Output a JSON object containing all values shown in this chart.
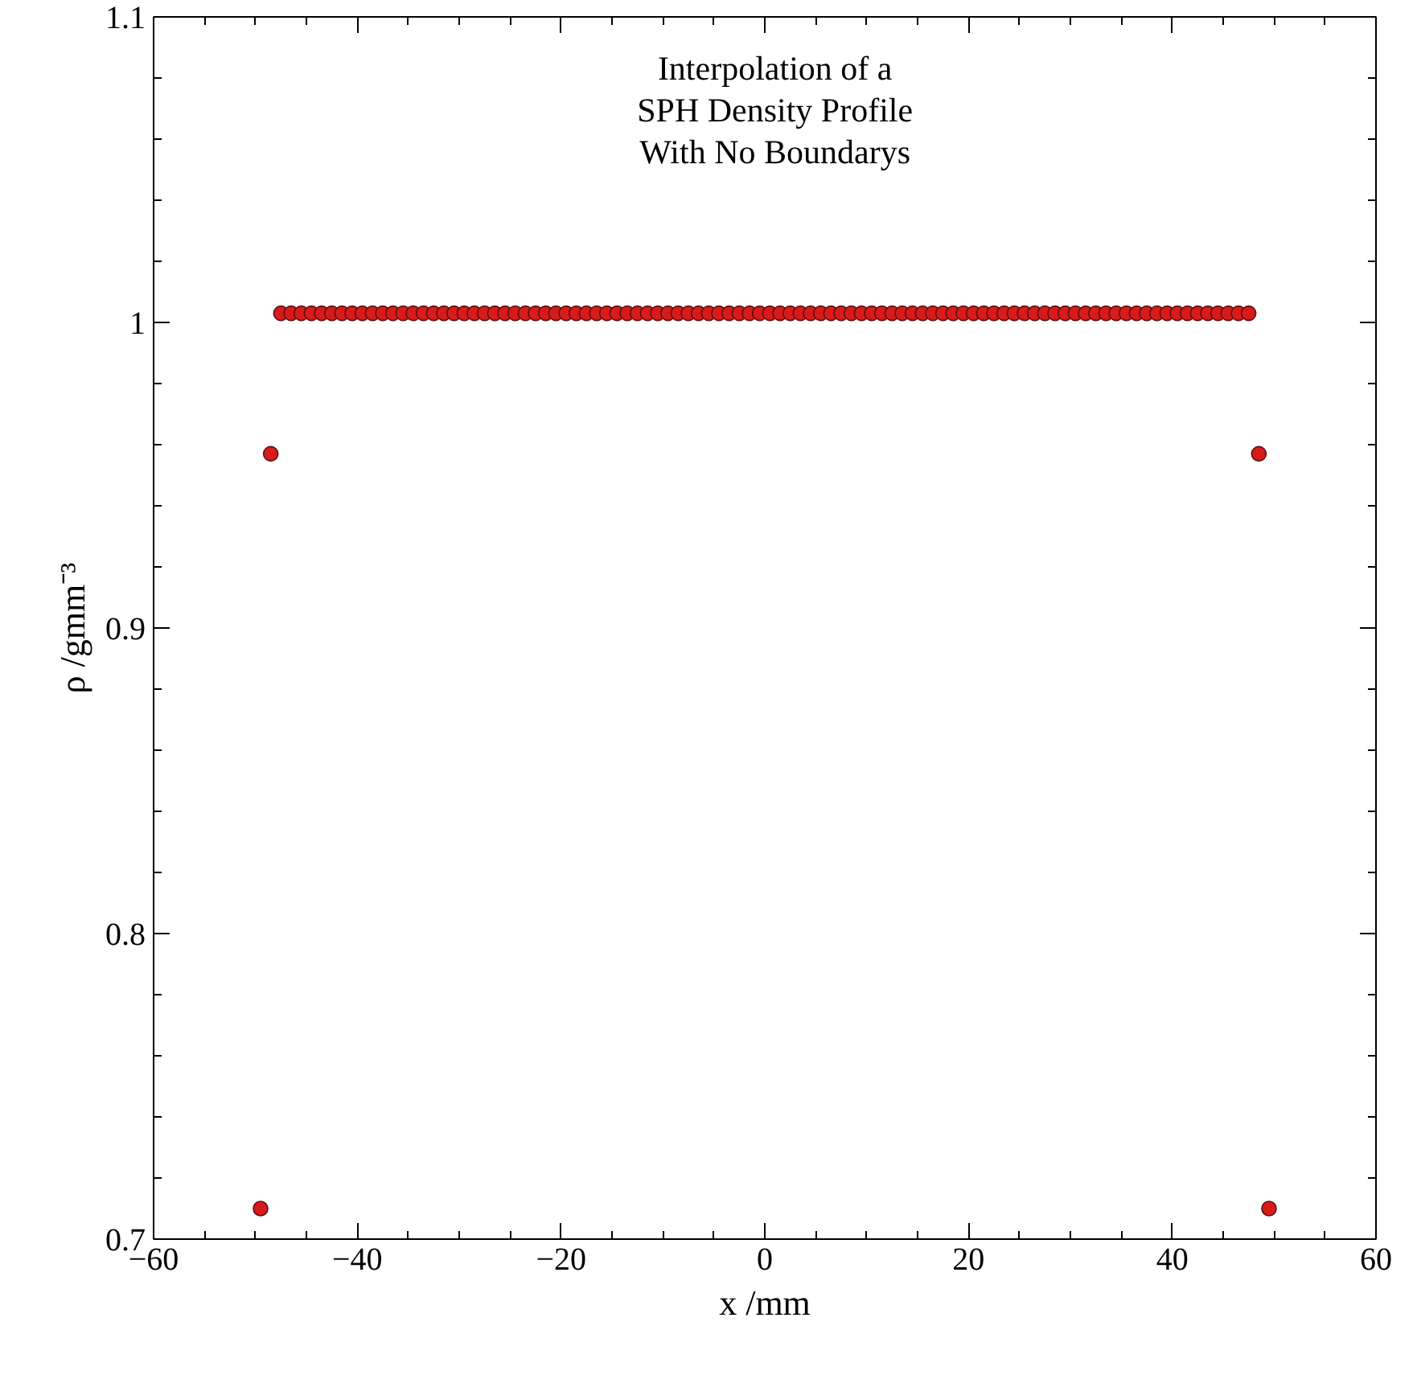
{
  "chart_data": {
    "type": "scatter",
    "title": "Interpolation of a\nSPH Density Profile\nWith No Boundarys",
    "xlabel": "x /mm",
    "ylabel": "ρ /gmm⁻³",
    "x": [
      -49.5,
      -48.5,
      -47.5,
      -46.5,
      -45.5,
      -44.5,
      -43.5,
      -42.5,
      -41.5,
      -40.5,
      -39.5,
      -38.5,
      -37.5,
      -36.5,
      -35.5,
      -34.5,
      -33.5,
      -32.5,
      -31.5,
      -30.5,
      -29.5,
      -28.5,
      -27.5,
      -26.5,
      -25.5,
      -24.5,
      -23.5,
      -22.5,
      -21.5,
      -20.5,
      -19.5,
      -18.5,
      -17.5,
      -16.5,
      -15.5,
      -14.5,
      -13.5,
      -12.5,
      -11.5,
      -10.5,
      -9.5,
      -8.5,
      -7.5,
      -6.5,
      -5.5,
      -4.5,
      -3.5,
      -2.5,
      -1.5,
      -0.5,
      0.5,
      1.5,
      2.5,
      3.5,
      4.5,
      5.5,
      6.5,
      7.5,
      8.5,
      9.5,
      10.5,
      11.5,
      12.5,
      13.5,
      14.5,
      15.5,
      16.5,
      17.5,
      18.5,
      19.5,
      20.5,
      21.5,
      22.5,
      23.5,
      24.5,
      25.5,
      26.5,
      27.5,
      28.5,
      29.5,
      30.5,
      31.5,
      32.5,
      33.5,
      34.5,
      35.5,
      36.5,
      37.5,
      38.5,
      39.5,
      40.5,
      41.5,
      42.5,
      43.5,
      44.5,
      45.5,
      46.5,
      47.5,
      48.5,
      49.5
    ],
    "series": [
      {
        "color": "#d91a1a",
        "values": [
          0.71,
          0.957,
          1.003,
          1.003,
          1.003,
          1.003,
          1.003,
          1.003,
          1.003,
          1.003,
          1.003,
          1.003,
          1.003,
          1.003,
          1.003,
          1.003,
          1.003,
          1.003,
          1.003,
          1.003,
          1.003,
          1.003,
          1.003,
          1.003,
          1.003,
          1.003,
          1.003,
          1.003,
          1.003,
          1.003,
          1.003,
          1.003,
          1.003,
          1.003,
          1.003,
          1.003,
          1.003,
          1.003,
          1.003,
          1.003,
          1.003,
          1.003,
          1.003,
          1.003,
          1.003,
          1.003,
          1.003,
          1.003,
          1.003,
          1.003,
          1.003,
          1.003,
          1.003,
          1.003,
          1.003,
          1.003,
          1.003,
          1.003,
          1.003,
          1.003,
          1.003,
          1.003,
          1.003,
          1.003,
          1.003,
          1.003,
          1.003,
          1.003,
          1.003,
          1.003,
          1.003,
          1.003,
          1.003,
          1.003,
          1.003,
          1.003,
          1.003,
          1.003,
          1.003,
          1.003,
          1.003,
          1.003,
          1.003,
          1.003,
          1.003,
          1.003,
          1.003,
          1.003,
          1.003,
          1.003,
          1.003,
          1.003,
          1.003,
          1.003,
          1.003,
          1.003,
          1.003,
          1.003,
          0.957,
          0.71
        ]
      }
    ],
    "xlim": [
      -60,
      60
    ],
    "xticks": [
      {
        "value": -60,
        "label": "−60"
      },
      {
        "value": -40,
        "label": "−40"
      },
      {
        "value": -20,
        "label": "−20"
      },
      0,
      20,
      40,
      60
    ],
    "ylim": [
      0.7,
      1.1
    ],
    "yticks": [
      0.7,
      0.8,
      0.9,
      1,
      1.1
    ],
    "grid": false,
    "marker": "circle"
  }
}
